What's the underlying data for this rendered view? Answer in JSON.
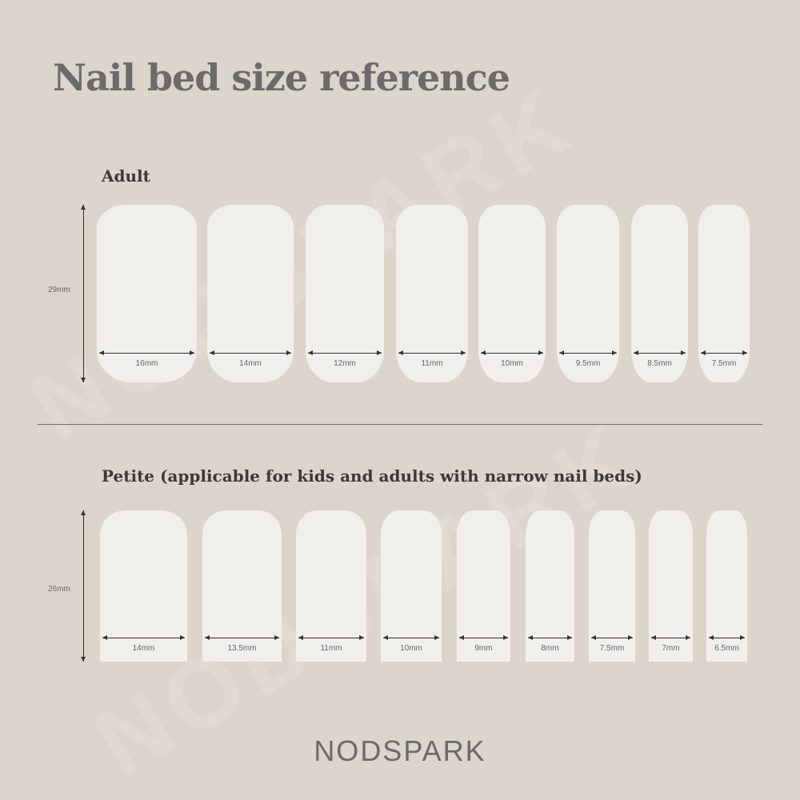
{
  "title": "Nail bed size reference",
  "adult": {
    "heading": "Adult",
    "length": "29mm",
    "widths": [
      "16mm",
      "14mm",
      "12mm",
      "11mm",
      "10mm",
      "9.5mm",
      "8.5mm",
      "7.5mm"
    ]
  },
  "petite": {
    "heading": "Petite (applicable for kids and adults with narrow nail beds)",
    "length": "26mm",
    "widths": [
      "14mm",
      "13.5mm",
      "11mm",
      "10mm",
      "9mm",
      "8mm",
      "7.5mm",
      "7mm",
      "6.5mm"
    ]
  },
  "brand": "NODSPARK",
  "colors": {
    "background": "#dcd5cc",
    "nail": "#f1efeb",
    "text": "#6b6b6b"
  }
}
